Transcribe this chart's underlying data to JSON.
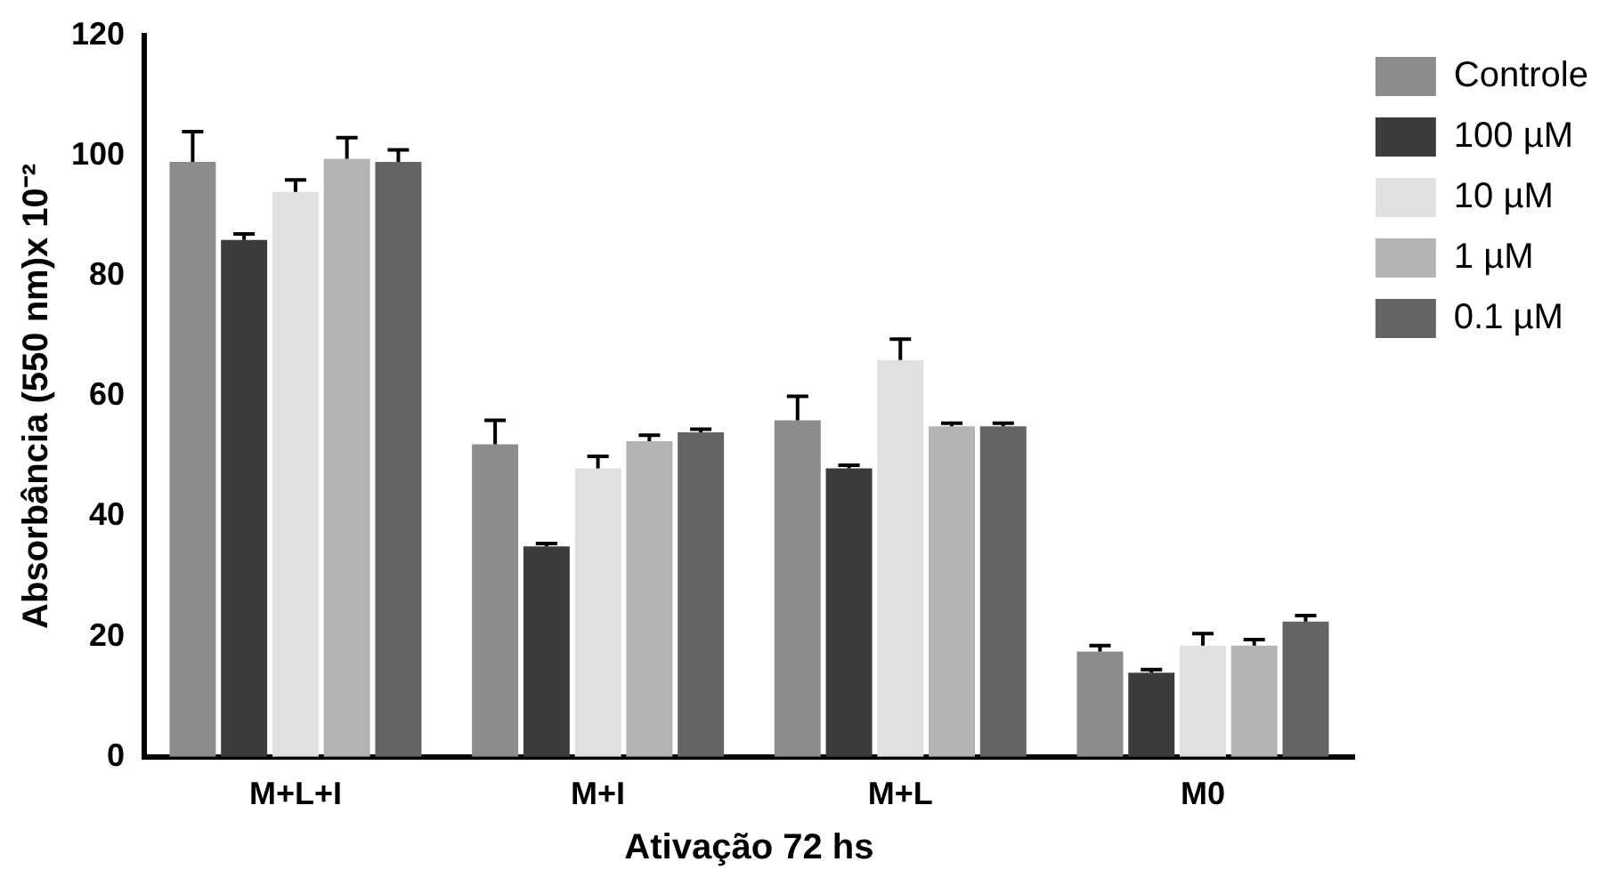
{
  "chart_data": {
    "type": "bar",
    "xlabel": "Ativação 72 hs",
    "ylabel": "Absorbância (550 nm)x 10⁻²",
    "categories": [
      "M+L+I",
      "M+I",
      "M+L",
      "M0"
    ],
    "series": [
      {
        "name": "Controle",
        "color": "#8c8c8c",
        "values": [
          99,
          52,
          56,
          17.5
        ],
        "errors": [
          5,
          4,
          4,
          1
        ]
      },
      {
        "name": "100 µM",
        "color": "#3c3c3c",
        "values": [
          86,
          35,
          48,
          14
        ],
        "errors": [
          1,
          0.5,
          0.5,
          0.5
        ]
      },
      {
        "name": "10 µM",
        "color": "#e0e0e0",
        "values": [
          94,
          48,
          66,
          18.5
        ],
        "errors": [
          2,
          2,
          3.5,
          2
        ]
      },
      {
        "name": "1 µM",
        "color": "#b4b4b4",
        "values": [
          99.5,
          52.5,
          55,
          18.5
        ],
        "errors": [
          3.5,
          1,
          0.5,
          1
        ]
      },
      {
        "name": "0.1 µM",
        "color": "#646464",
        "values": [
          99,
          54,
          55,
          22.5
        ],
        "errors": [
          2,
          0.5,
          0.5,
          1
        ]
      }
    ],
    "ylim": [
      0,
      120
    ],
    "yticks": [
      0,
      20,
      40,
      60,
      80,
      100,
      120
    ],
    "grid": false,
    "legend": "right"
  }
}
